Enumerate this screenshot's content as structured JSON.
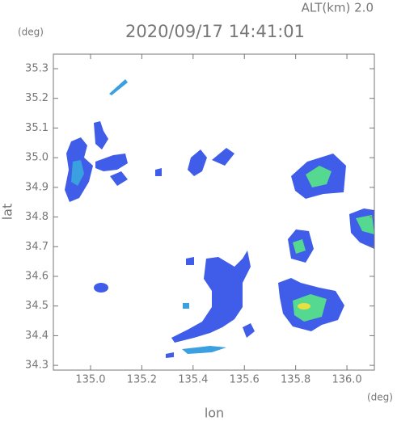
{
  "chart_data": {
    "type": "radar-map",
    "alt_label": "ALT(km) 2.0",
    "title": "2020/09/17 14:41:01",
    "y_unit": "(deg)",
    "x_unit": "(deg)",
    "ylabel": "lat",
    "xlabel": "lon",
    "xlim": [
      134.855,
      136.107
    ],
    "ylim": [
      34.284,
      35.349
    ],
    "xticks": [
      {
        "value": 135.0,
        "label": "135.0"
      },
      135.2,
      135.4,
      135.6,
      135.8,
      {
        "value": 136.0,
        "label": "136.0"
      }
    ],
    "yticks": [
      34.3,
      34.4,
      34.5,
      34.6,
      34.7,
      34.8,
      34.9,
      {
        "value": 35.0,
        "label": "35.0"
      },
      35.1,
      35.2,
      35.3
    ]
  }
}
